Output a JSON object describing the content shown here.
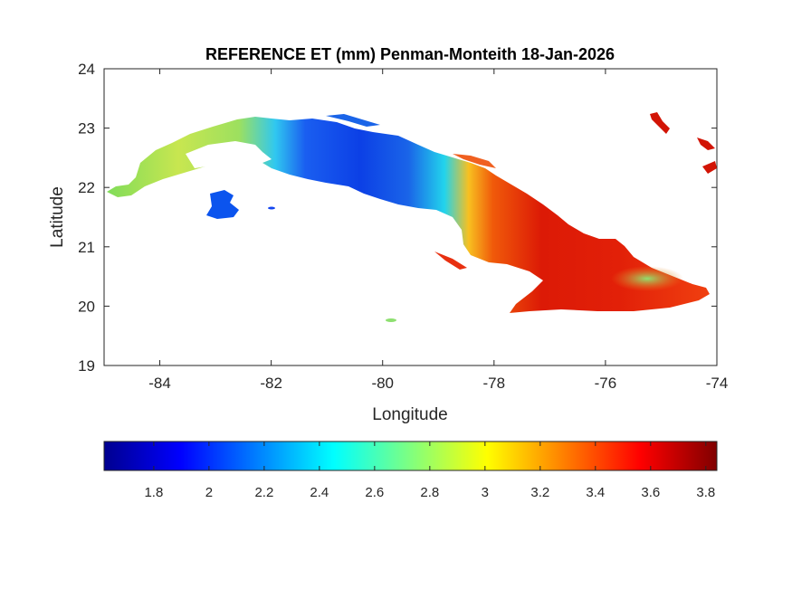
{
  "title": "REFERENCE ET (mm) Penman-Monteith 18-Jan-2026",
  "axes": {
    "xlabel": "Longitude",
    "ylabel": "Latitude",
    "xlim": [
      -85,
      -74
    ],
    "ylim": [
      19,
      24
    ],
    "xticks": [
      {
        "value": -84,
        "label": "-84"
      },
      {
        "value": -82,
        "label": "-82"
      },
      {
        "value": -80,
        "label": "-80"
      },
      {
        "value": -78,
        "label": "-78"
      },
      {
        "value": -76,
        "label": "-76"
      },
      {
        "value": -74,
        "label": "-74"
      }
    ],
    "yticks": [
      {
        "value": 19,
        "label": "19"
      },
      {
        "value": 20,
        "label": "20"
      },
      {
        "value": 21,
        "label": "21"
      },
      {
        "value": 22,
        "label": "22"
      },
      {
        "value": 23,
        "label": "23"
      },
      {
        "value": 24,
        "label": "24"
      }
    ],
    "grid": false
  },
  "colorbar": {
    "colormap": "jet",
    "range": [
      1.62,
      3.84
    ],
    "ticks": [
      {
        "value": 1.8,
        "label": "1.8"
      },
      {
        "value": 2.0,
        "label": "2"
      },
      {
        "value": 2.2,
        "label": "2.2"
      },
      {
        "value": 2.4,
        "label": "2.4"
      },
      {
        "value": 2.6,
        "label": "2.6"
      },
      {
        "value": 2.8,
        "label": "2.8"
      },
      {
        "value": 3.0,
        "label": "3"
      },
      {
        "value": 3.2,
        "label": "3.2"
      },
      {
        "value": 3.4,
        "label": "3.4"
      },
      {
        "value": 3.6,
        "label": "3.6"
      },
      {
        "value": 3.8,
        "label": "3.8"
      }
    ],
    "placement": "bottom"
  },
  "regions": [
    {
      "name": "western-cuba",
      "value_range": [
        2.5,
        3.0
      ],
      "color": "#8fe05a"
    },
    {
      "name": "havana-matanzas",
      "value_range": [
        1.8,
        2.2
      ],
      "color": "#1346f0"
    },
    {
      "name": "central-cuba",
      "value_range": [
        2.2,
        2.6
      ],
      "color": "#1ec8e6"
    },
    {
      "name": "eastern-cuba",
      "value_range": [
        3.3,
        3.8
      ],
      "color": "#e41a06"
    },
    {
      "name": "isla-de-la-juventud",
      "value_range": [
        1.9,
        2.1
      ],
      "color": "#0b54ee"
    },
    {
      "name": "haiti-fragments",
      "value_range": [
        3.5,
        3.8
      ],
      "color": "#d21405"
    }
  ]
}
